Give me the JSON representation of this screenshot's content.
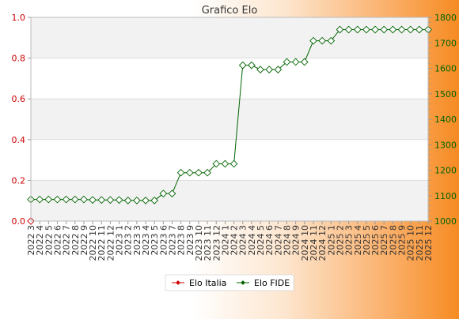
{
  "chart_data": {
    "type": "line",
    "title": "Grafico Elo",
    "xlabel": "",
    "ylabel_left": "",
    "ylabel_right": "",
    "legend_position": "bottom-center",
    "grid": "horizontal bands",
    "categories": [
      "2022 3",
      "2022 4",
      "2022 5",
      "2022 6",
      "2022 7",
      "2022 8",
      "2022 9",
      "2022 10",
      "2022 11",
      "2022 12",
      "2023 1",
      "2023 2",
      "2023 3",
      "2023 4",
      "2023 5",
      "2023 6",
      "2023 7",
      "2023 8",
      "2023 9",
      "2023 10",
      "2023 11",
      "2023 12",
      "2024 1",
      "2024 2",
      "2024 3",
      "2024 4",
      "2024 5",
      "2024 6",
      "2024 7",
      "2024 8",
      "2024 9",
      "2024 10",
      "2024 11",
      "2024 12",
      "2025 1",
      "2025 2",
      "2025 3",
      "2025 4",
      "2025 5",
      "2025 6",
      "2025 7",
      "2025 8",
      "2025 9",
      "2025 10",
      "2025 11",
      "2025 12"
    ],
    "left_axis": {
      "ylim": [
        0,
        1
      ],
      "ticks": [
        "0.0",
        "0.2",
        "0.4",
        "0.6",
        "0.8",
        "1.0"
      ],
      "color": "#cc0000"
    },
    "right_axis": {
      "ylim": [
        1000,
        1800
      ],
      "ticks": [
        "1000",
        "1100",
        "1200",
        "1300",
        "1400",
        "1500",
        "1600",
        "1700",
        "1800"
      ],
      "color": "#006400"
    },
    "series": [
      {
        "name": "Elo Italia",
        "axis": "left",
        "color": "#cc0000",
        "values": [
          0,
          null,
          null,
          null,
          null,
          null,
          null,
          null,
          null,
          null,
          null,
          null,
          null,
          null,
          null,
          null,
          null,
          null,
          null,
          null,
          null,
          null,
          null,
          null,
          null,
          null,
          null,
          null,
          null,
          null,
          null,
          null,
          null,
          null,
          null,
          null,
          null,
          null,
          null,
          null,
          null,
          null,
          null,
          null,
          null,
          null
        ]
      },
      {
        "name": "Elo FIDE",
        "axis": "right",
        "color": "#006400",
        "values": [
          1085,
          1085,
          1085,
          1085,
          1085,
          1085,
          1085,
          1083,
          1083,
          1083,
          1083,
          1081,
          1081,
          1081,
          1081,
          1108,
          1108,
          1190,
          1190,
          1190,
          1190,
          1225,
          1225,
          1225,
          1612,
          1612,
          1595,
          1595,
          1595,
          1625,
          1625,
          1625,
          1708,
          1708,
          1708,
          1752,
          1752,
          1752,
          1752,
          1752,
          1752,
          1752,
          1752,
          1752,
          1752,
          1752
        ]
      }
    ]
  }
}
